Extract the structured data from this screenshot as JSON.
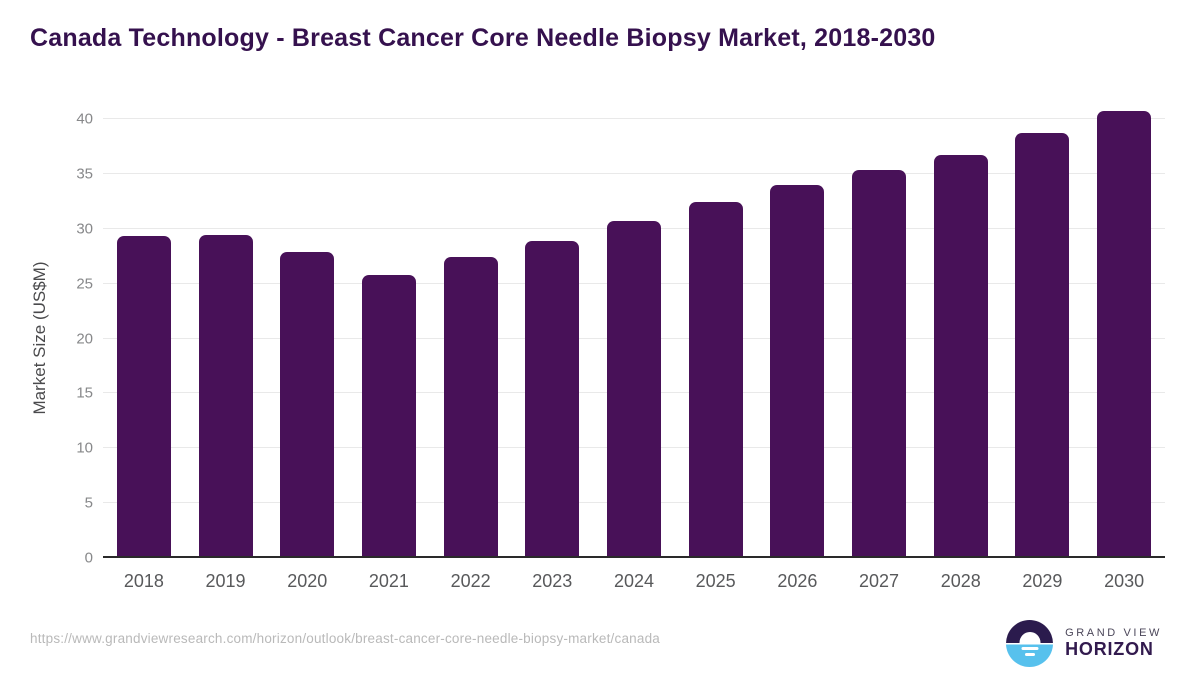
{
  "title": "Canada Technology - Breast Cancer Core Needle Biopsy Market, 2018-2030",
  "chart_data": {
    "type": "bar",
    "categories": [
      "2018",
      "2019",
      "2020",
      "2021",
      "2022",
      "2023",
      "2024",
      "2025",
      "2026",
      "2027",
      "2028",
      "2029",
      "2030"
    ],
    "values": [
      29.3,
      29.4,
      27.9,
      25.8,
      27.4,
      28.9,
      30.7,
      32.4,
      34.0,
      35.4,
      36.7,
      38.7,
      40.7
    ],
    "title": "Canada Technology - Breast Cancer Core Needle Biopsy Market, 2018-2030",
    "xlabel": "",
    "ylabel": "Market Size (US$M)",
    "ylim": [
      0,
      40
    ],
    "yticks": [
      0,
      5,
      10,
      15,
      20,
      25,
      30,
      35,
      40
    ],
    "grid": true,
    "legend_position": "none",
    "bar_color": "#481158"
  },
  "footer": {
    "url": "https://www.grandviewresearch.com/horizon/outlook/breast-cancer-core-needle-biopsy-market/canada",
    "logo_line1": "GRAND VIEW",
    "logo_line2": "HORIZON"
  },
  "colors": {
    "accent_purple": "#481158",
    "title_purple": "#35114e",
    "logo_dark": "#2b1b4d",
    "logo_blue": "#57c1ed",
    "gridline": "#e9e9e9"
  }
}
